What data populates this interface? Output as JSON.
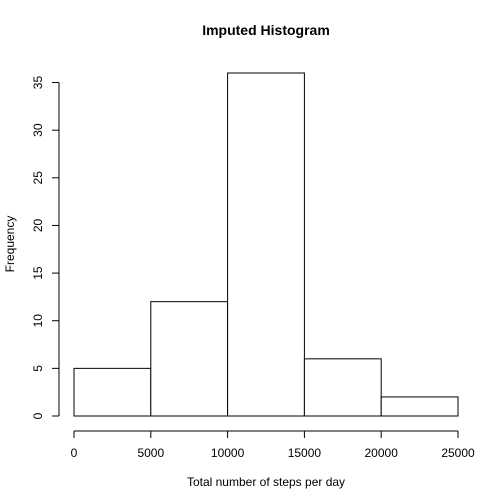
{
  "chart_data": {
    "type": "bar",
    "title": "Imputed Histogram",
    "xlabel": "Total number of steps per day",
    "ylabel": "Frequency",
    "bins": [
      {
        "start": 0,
        "end": 5000,
        "count": 5
      },
      {
        "start": 5000,
        "end": 10000,
        "count": 12
      },
      {
        "start": 10000,
        "end": 15000,
        "count": 36
      },
      {
        "start": 15000,
        "end": 20000,
        "count": 6
      },
      {
        "start": 20000,
        "end": 25000,
        "count": 2
      }
    ],
    "xlim": [
      0,
      25000
    ],
    "ylim": [
      0,
      36
    ],
    "x_ticks": [
      0,
      5000,
      10000,
      15000,
      20000,
      25000
    ],
    "y_ticks": [
      0,
      5,
      10,
      15,
      20,
      25,
      30,
      35
    ],
    "grid": false,
    "colors": {
      "bar_fill": "#ffffff",
      "bar_stroke": "#000000"
    }
  }
}
